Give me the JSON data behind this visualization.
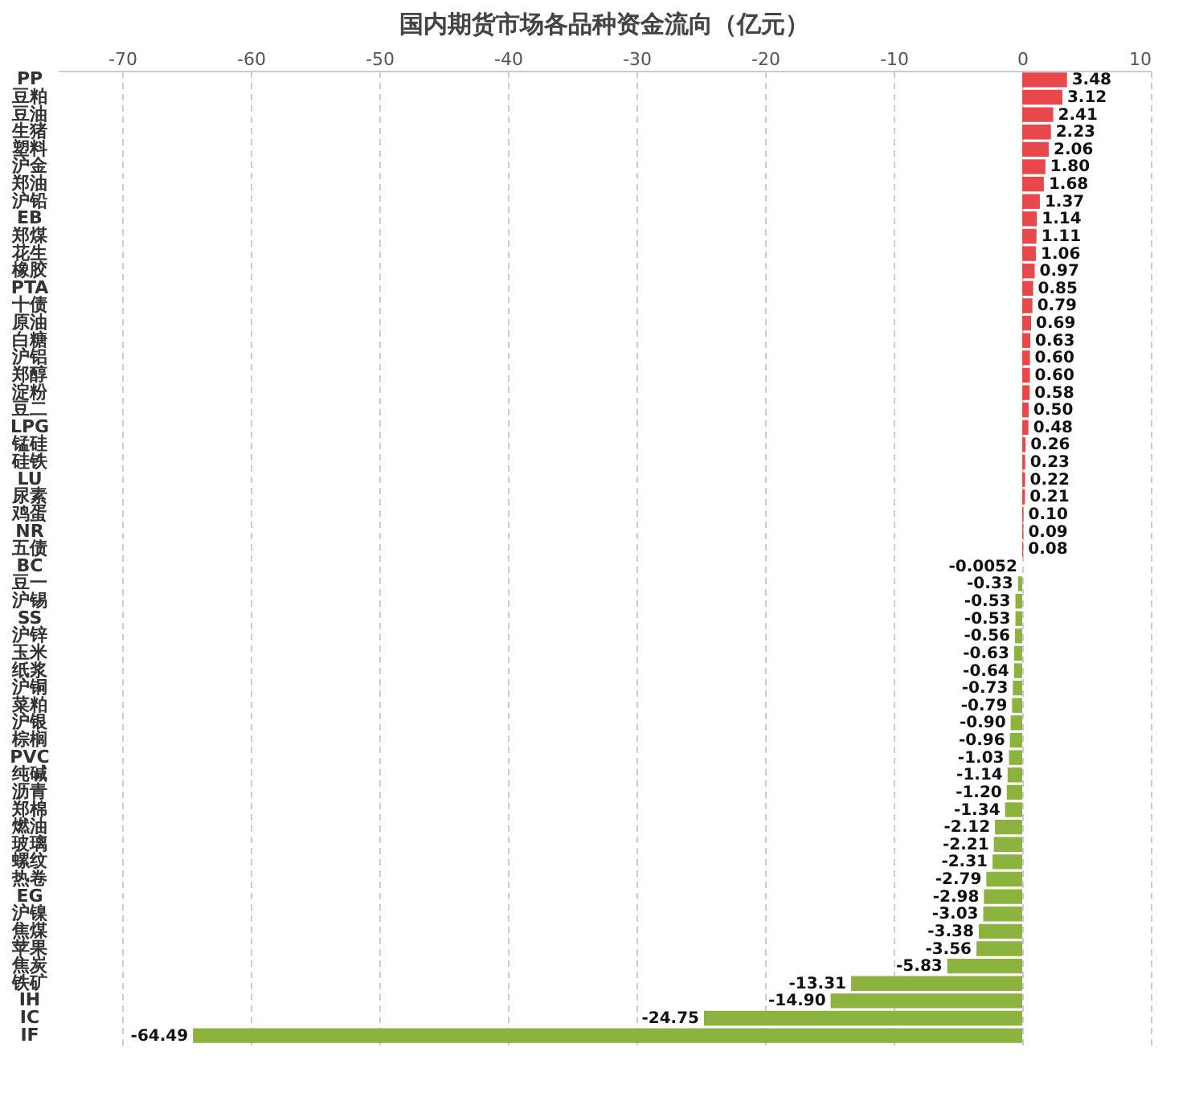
{
  "chart_data": {
    "type": "bar",
    "orientation": "horizontal",
    "title": "国内期货市场各品种资金流向（亿元）",
    "categories": [
      "PP",
      "豆粕",
      "豆油",
      "生猪",
      "塑料",
      "沪金",
      "郑油",
      "沪铅",
      "EB",
      "郑煤",
      "花生",
      "橡胶",
      "PTA",
      "十债",
      "原油",
      "白糖",
      "沪铝",
      "郑醇",
      "淀粉",
      "豆二",
      "LPG",
      "锰硅",
      "硅铁",
      "LU",
      "尿素",
      "鸡蛋",
      "NR",
      "五债",
      "BC",
      "豆一",
      "沪锡",
      "SS",
      "沪锌",
      "玉米",
      "纸浆",
      "沪铜",
      "菜粕",
      "沪银",
      "棕榈",
      "PVC",
      "纯碱",
      "沥青",
      "郑棉",
      "燃油",
      "玻璃",
      "螺纹",
      "热卷",
      "EG",
      "沪镍",
      "焦煤",
      "苹果",
      "焦炭",
      "铁矿",
      "IH",
      "IC",
      "IF"
    ],
    "values": [
      3.48,
      3.12,
      2.41,
      2.23,
      2.06,
      1.8,
      1.68,
      1.37,
      1.14,
      1.11,
      1.06,
      0.97,
      0.85,
      0.79,
      0.69,
      0.63,
      0.6,
      0.6,
      0.58,
      0.5,
      0.48,
      0.26,
      0.23,
      0.22,
      0.21,
      0.1,
      0.09,
      0.08,
      -0.0052,
      -0.33,
      -0.53,
      -0.53,
      -0.56,
      -0.63,
      -0.64,
      -0.73,
      -0.79,
      -0.9,
      -0.96,
      -1.03,
      -1.14,
      -1.2,
      -1.34,
      -2.12,
      -2.21,
      -2.31,
      -2.79,
      -2.98,
      -3.03,
      -3.38,
      -3.56,
      -5.83,
      -13.31,
      -14.9,
      -24.75,
      -64.49
    ],
    "value_labels": [
      "3.48",
      "3.12",
      "2.41",
      "2.23",
      "2.06",
      "1.80",
      "1.68",
      "1.37",
      "1.14",
      "1.11",
      "1.06",
      "0.97",
      "0.85",
      "0.79",
      "0.69",
      "0.63",
      "0.60",
      "0.60",
      "0.58",
      "0.50",
      "0.48",
      "0.26",
      "0.23",
      "0.22",
      "0.21",
      "0.10",
      "0.09",
      "0.08",
      "-0.0052",
      "-0.33",
      "-0.53",
      "-0.53",
      "-0.56",
      "-0.63",
      "-0.64",
      "-0.73",
      "-0.79",
      "-0.90",
      "-0.96",
      "-1.03",
      "-1.14",
      "-1.20",
      "-1.34",
      "-2.12",
      "-2.21",
      "-2.31",
      "-2.79",
      "-2.98",
      "-3.03",
      "-3.38",
      "-3.56",
      "-5.83",
      "-13.31",
      "-14.90",
      "-24.75",
      "-64.49"
    ],
    "colors": [
      "#e8474c",
      "#e8474c",
      "#e8474c",
      "#e8474c",
      "#e8474c",
      "#e8474c",
      "#e8474c",
      "#e8474c",
      "#e8474c",
      "#e8474c",
      "#e8474c",
      "#e8474c",
      "#e8474c",
      "#e8474c",
      "#e8474c",
      "#e8474c",
      "#e8474c",
      "#e8474c",
      "#e8474c",
      "#e8474c",
      "#e8474c",
      "#e8474c",
      "#e8474c",
      "#e8474c",
      "#e8474c",
      "#e8474c",
      "#e8474c",
      "#e8474c",
      "#8db33f",
      "#8db33f",
      "#8db33f",
      "#8db33f",
      "#8db33f",
      "#8db33f",
      "#8db33f",
      "#8db33f",
      "#8db33f",
      "#8db33f",
      "#8db33f",
      "#8db33f",
      "#8db33f",
      "#8db33f",
      "#8db33f",
      "#8db33f",
      "#8db33f",
      "#8db33f",
      "#8db33f",
      "#8db33f",
      "#8db33f",
      "#8db33f",
      "#8db33f",
      "#8db33f",
      "#8db33f",
      "#8db33f",
      "#8db33f",
      "#8db33f"
    ],
    "xlim": [
      -75,
      10
    ],
    "xticks": [
      -70,
      -60,
      -50,
      -40,
      -30,
      -20,
      -10,
      0,
      10
    ],
    "grid": "x"
  }
}
